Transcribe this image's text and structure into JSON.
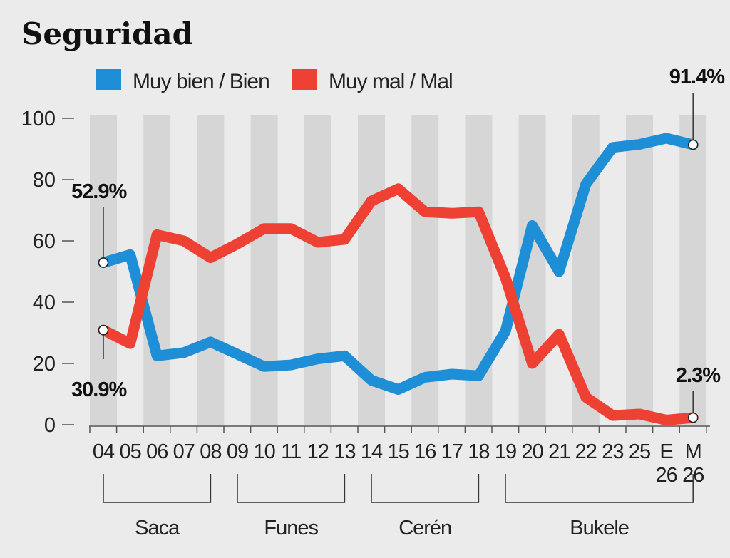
{
  "chart_data": {
    "type": "line",
    "title": "Seguridad",
    "x": [
      "04",
      "05",
      "06",
      "07",
      "08",
      "09",
      "10",
      "11",
      "12",
      "13",
      "14",
      "15",
      "16",
      "17",
      "18",
      "19",
      "20",
      "21",
      "22",
      "23",
      "25",
      "E 26",
      "M 26"
    ],
    "series": [
      {
        "name": "Muy bien / Bien",
        "color": "#1e8fd6",
        "values": [
          52.9,
          55.5,
          22.5,
          23.5,
          27,
          23,
          19,
          19.5,
          21.5,
          22.5,
          14.5,
          11.5,
          15.5,
          16.5,
          16,
          30.5,
          65,
          50,
          78.5,
          90.5,
          91.5,
          93.5,
          91.4
        ]
      },
      {
        "name": "Muy mal / Mal",
        "color": "#ee4033",
        "values": [
          30.9,
          26.5,
          62,
          60,
          54.5,
          59,
          64,
          64,
          59.5,
          60.5,
          73,
          77,
          69.5,
          69,
          69.5,
          48,
          20,
          29.5,
          9,
          3,
          3.5,
          1.5,
          2.3
        ]
      }
    ],
    "ylim": [
      0,
      100
    ],
    "yticks": [
      0,
      20,
      40,
      60,
      80,
      100
    ],
    "groups": [
      {
        "label": "Saca",
        "from": "04",
        "to": "08"
      },
      {
        "label": "Funes",
        "from": "09",
        "to": "13"
      },
      {
        "label": "Cerén",
        "from": "14",
        "to": "18"
      },
      {
        "label": "Bukele",
        "from": "19",
        "to": "M 26"
      }
    ],
    "annotations": [
      {
        "text": "52.9%",
        "series": 0,
        "index": 0
      },
      {
        "text": "30.9%",
        "series": 1,
        "index": 0
      },
      {
        "text": "91.4%",
        "series": 0,
        "index": 22
      },
      {
        "text": "2.3%",
        "series": 1,
        "index": 22
      }
    ],
    "colors": {
      "band": "#d6d6d6",
      "background": "#ebebeb",
      "axis": "#555555"
    },
    "legend": "top"
  }
}
